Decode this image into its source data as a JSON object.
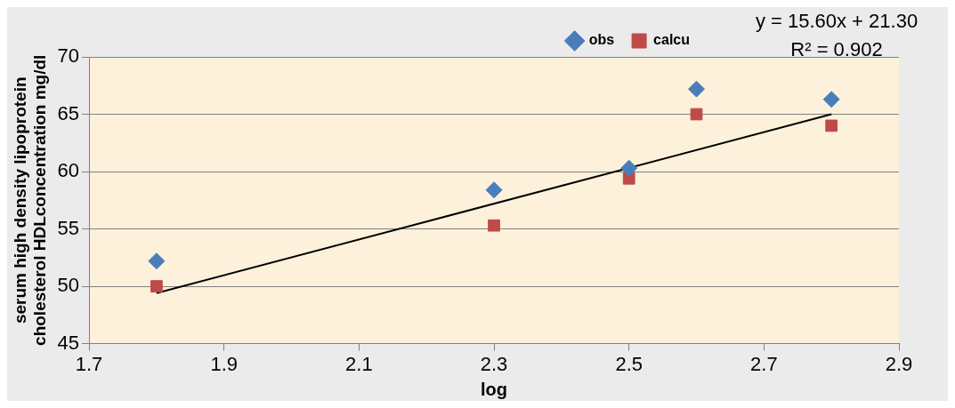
{
  "chart_data": {
    "type": "scatter",
    "xlabel": "log",
    "ylabel": "serum high density lipoprotein cholesterol HDLconcentration mg/dl",
    "x": [
      1.8,
      2.3,
      2.5,
      2.6,
      2.8
    ],
    "series": [
      {
        "name": "obs",
        "color": "#4a7ebb",
        "marker": "diamond",
        "values": [
          52.2,
          58.4,
          60.3,
          67.2,
          66.3
        ]
      },
      {
        "name": "calcu",
        "color": "#be4b48",
        "marker": "square",
        "values": [
          50.0,
          55.3,
          59.4,
          65.0,
          64.0
        ]
      },
      {
        "type": "line",
        "color": "#000000",
        "marker": "none",
        "x": [
          1.8,
          2.8
        ],
        "values": [
          49.4,
          65.0
        ]
      }
    ],
    "xlim": [
      1.7,
      2.9
    ],
    "xticks": [
      1.7,
      1.9,
      2.1,
      2.3,
      2.5,
      2.7,
      2.9
    ],
    "ylim": [
      45,
      70
    ],
    "yticks": [
      45,
      50,
      55,
      60,
      65,
      70
    ],
    "grid": "y",
    "legend": "top right",
    "annotations": [
      "y = 15.60x + 21.30",
      "R² = 0.902"
    ]
  }
}
